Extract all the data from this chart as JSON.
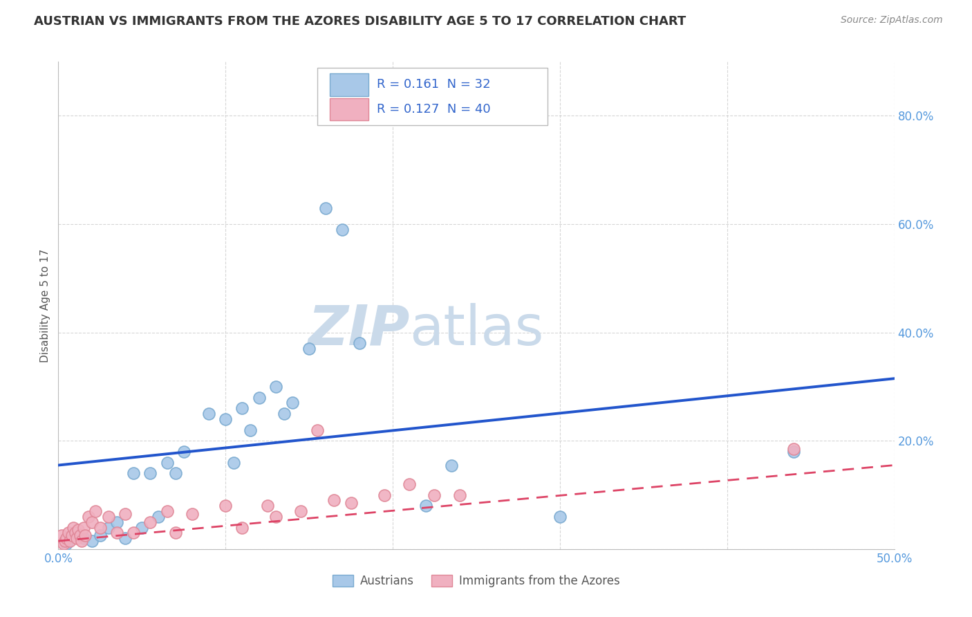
{
  "title": "AUSTRIAN VS IMMIGRANTS FROM THE AZORES DISABILITY AGE 5 TO 17 CORRELATION CHART",
  "source": "Source: ZipAtlas.com",
  "ylabel": "Disability Age 5 to 17",
  "xlim": [
    0.0,
    0.5
  ],
  "ylim": [
    0.0,
    0.9
  ],
  "xticks": [
    0.0,
    0.1,
    0.2,
    0.3,
    0.4,
    0.5
  ],
  "xtick_labels": [
    "0.0%",
    "",
    "",
    "",
    "",
    "50.0%"
  ],
  "yticks": [
    0.0,
    0.2,
    0.4,
    0.6,
    0.8
  ],
  "ytick_labels": [
    "",
    "20.0%",
    "40.0%",
    "60.0%",
    "80.0%"
  ],
  "blue_R": "0.161",
  "blue_N": "32",
  "pink_R": "0.127",
  "pink_N": "40",
  "blue_color": "#A8C8E8",
  "pink_color": "#F0B0C0",
  "blue_edge_color": "#7AAAD0",
  "pink_edge_color": "#E08898",
  "blue_line_color": "#2255CC",
  "pink_line_color": "#DD4466",
  "legend_text_color": "#3366CC",
  "watermark_zip": "ZIP",
  "watermark_atlas": "atlas",
  "watermark_color": "#CADAEA",
  "background_color": "#FFFFFF",
  "grid_color": "#CCCCCC",
  "title_color": "#333333",
  "axis_tick_color": "#5599DD",
  "blue_x": [
    0.005,
    0.01,
    0.015,
    0.02,
    0.025,
    0.03,
    0.035,
    0.04,
    0.045,
    0.05,
    0.055,
    0.06,
    0.065,
    0.07,
    0.075,
    0.09,
    0.1,
    0.105,
    0.11,
    0.115,
    0.12,
    0.13,
    0.135,
    0.14,
    0.15,
    0.16,
    0.17,
    0.18,
    0.22,
    0.235,
    0.3,
    0.44
  ],
  "blue_y": [
    0.01,
    0.03,
    0.02,
    0.015,
    0.025,
    0.04,
    0.05,
    0.02,
    0.14,
    0.04,
    0.14,
    0.06,
    0.16,
    0.14,
    0.18,
    0.25,
    0.24,
    0.16,
    0.26,
    0.22,
    0.28,
    0.3,
    0.25,
    0.27,
    0.37,
    0.63,
    0.59,
    0.38,
    0.08,
    0.155,
    0.06,
    0.18
  ],
  "pink_x": [
    0.002,
    0.003,
    0.004,
    0.005,
    0.006,
    0.007,
    0.008,
    0.009,
    0.01,
    0.011,
    0.012,
    0.013,
    0.014,
    0.015,
    0.016,
    0.018,
    0.02,
    0.022,
    0.025,
    0.03,
    0.035,
    0.04,
    0.045,
    0.055,
    0.065,
    0.07,
    0.08,
    0.1,
    0.11,
    0.125,
    0.13,
    0.145,
    0.155,
    0.165,
    0.175,
    0.195,
    0.21,
    0.225,
    0.24,
    0.44
  ],
  "pink_y": [
    0.025,
    0.01,
    0.015,
    0.02,
    0.03,
    0.015,
    0.025,
    0.04,
    0.03,
    0.02,
    0.035,
    0.025,
    0.015,
    0.04,
    0.025,
    0.06,
    0.05,
    0.07,
    0.04,
    0.06,
    0.03,
    0.065,
    0.03,
    0.05,
    0.07,
    0.03,
    0.065,
    0.08,
    0.04,
    0.08,
    0.06,
    0.07,
    0.22,
    0.09,
    0.085,
    0.1,
    0.12,
    0.1,
    0.1,
    0.185
  ],
  "blue_trend_start_y": 0.155,
  "blue_trend_end_y": 0.315,
  "pink_trend_start_y": 0.015,
  "pink_trend_end_y": 0.155
}
